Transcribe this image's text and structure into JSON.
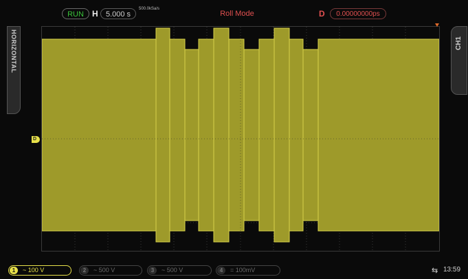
{
  "top_bar": {
    "run_state": "RUN",
    "horizontal_label": "H",
    "time_per_div": "5.000 s",
    "sample_rate": "500.0kSa/s",
    "mode": "Roll Mode",
    "delay_label": "D",
    "delay_value": "0.00000000ps"
  },
  "side_tabs": {
    "left": "HORIZONTAL",
    "right": "CH1"
  },
  "channels": [
    {
      "number": "1",
      "coupling_symbol": "~",
      "scale": "100 V",
      "active": true
    },
    {
      "number": "2",
      "coupling_symbol": "~",
      "scale": "500 V",
      "active": false
    },
    {
      "number": "3",
      "coupling_symbol": "~",
      "scale": "500 V",
      "active": false
    },
    {
      "number": "4",
      "coupling_symbol": "=",
      "scale": "100mV",
      "active": false
    }
  ],
  "status": {
    "usb_icon": "usb-icon",
    "time": "13:59"
  },
  "colors": {
    "ch1": "#e8e14a",
    "waveform": "#9e9a2a",
    "run": "#3ac23a",
    "mode": "#e05050"
  }
}
